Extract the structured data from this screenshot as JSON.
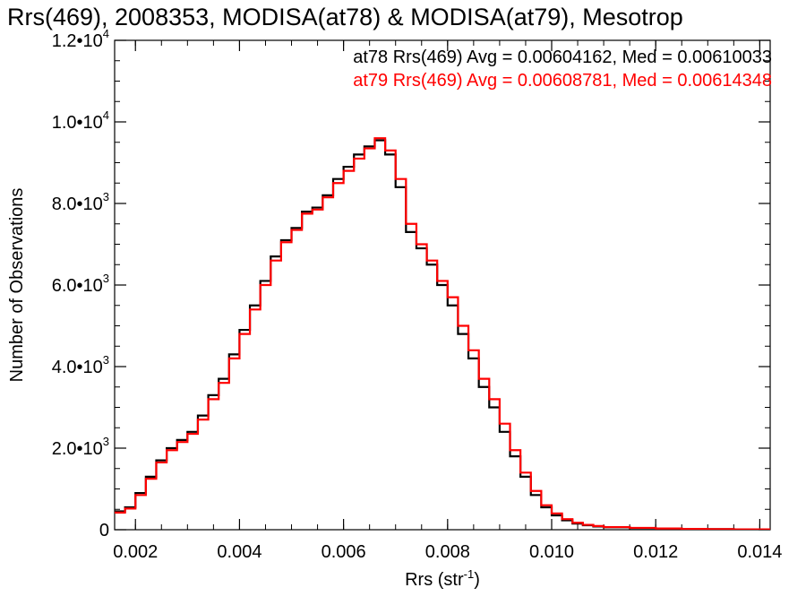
{
  "chart_data": {
    "type": "line",
    "title": "Rrs(469), 2008353, MODISA(at78) & MODISA(at79), Mesotrop",
    "xlabel": "Rrs (str",
    "xlabel_sup": "-1",
    "xlabel_close": ")",
    "ylabel": "Number of Observations",
    "xlim": [
      0.0016,
      0.0142
    ],
    "ylim": [
      0,
      12000
    ],
    "x_ticks": [
      {
        "value": 0.002,
        "label": "0.002"
      },
      {
        "value": 0.004,
        "label": "0.004"
      },
      {
        "value": 0.006,
        "label": "0.006"
      },
      {
        "value": 0.008,
        "label": "0.008"
      },
      {
        "value": 0.01,
        "label": "0.010"
      },
      {
        "value": 0.012,
        "label": "0.012"
      },
      {
        "value": 0.014,
        "label": "0.014"
      }
    ],
    "y_ticks": [
      {
        "value": 0,
        "mant": "0",
        "exp": ""
      },
      {
        "value": 2000,
        "mant": "2.0•10",
        "exp": "3"
      },
      {
        "value": 4000,
        "mant": "4.0•10",
        "exp": "3"
      },
      {
        "value": 6000,
        "mant": "6.0•10",
        "exp": "3"
      },
      {
        "value": 8000,
        "mant": "8.0•10",
        "exp": "3"
      },
      {
        "value": 10000,
        "mant": "1.0•10",
        "exp": "4"
      },
      {
        "value": 12000,
        "mant": "1.2•10",
        "exp": "4"
      }
    ],
    "x_minor_step": 0.0005,
    "y_minor_step": 500,
    "grid": false,
    "legend_position": "top-right",
    "annotations": [
      {
        "text": "at78 Rrs(469) Avg = 0.00604162, Med = 0.00610033",
        "color": "#000000"
      },
      {
        "text": "at79 Rrs(469) Avg = 0.00608781, Med = 0.00614348",
        "color": "#ff0000"
      }
    ],
    "series": [
      {
        "color": "#000000",
        "x": [
          0.0016,
          0.0018,
          0.002,
          0.0022,
          0.0024,
          0.0026,
          0.0028,
          0.003,
          0.0032,
          0.0034,
          0.0036,
          0.0038,
          0.004,
          0.0042,
          0.0044,
          0.0046,
          0.0048,
          0.005,
          0.0052,
          0.0054,
          0.0056,
          0.0058,
          0.006,
          0.0062,
          0.0064,
          0.0066,
          0.0068,
          0.007,
          0.0072,
          0.0074,
          0.0076,
          0.0078,
          0.008,
          0.0082,
          0.0084,
          0.0086,
          0.0088,
          0.009,
          0.0092,
          0.0094,
          0.0096,
          0.0098,
          0.01,
          0.0102,
          0.0104,
          0.0106,
          0.0108,
          0.011,
          0.0115,
          0.012,
          0.0125,
          0.013,
          0.0135,
          0.0142
        ],
        "y": [
          450,
          550,
          900,
          1300,
          1700,
          2000,
          2200,
          2400,
          2800,
          3300,
          3700,
          4300,
          4900,
          5500,
          6100,
          6700,
          7100,
          7400,
          7800,
          7900,
          8200,
          8600,
          8900,
          9200,
          9400,
          9550,
          9200,
          8400,
          7300,
          6900,
          6500,
          6000,
          5500,
          4800,
          4200,
          3500,
          3000,
          2400,
          1800,
          1300,
          850,
          550,
          350,
          230,
          150,
          110,
          80,
          60,
          40,
          30,
          20,
          15,
          10,
          5
        ]
      },
      {
        "color": "#ff0000",
        "x": [
          0.0016,
          0.0018,
          0.002,
          0.0022,
          0.0024,
          0.0026,
          0.0028,
          0.003,
          0.0032,
          0.0034,
          0.0036,
          0.0038,
          0.004,
          0.0042,
          0.0044,
          0.0046,
          0.0048,
          0.005,
          0.0052,
          0.0054,
          0.0056,
          0.0058,
          0.006,
          0.0062,
          0.0064,
          0.0066,
          0.0068,
          0.007,
          0.0072,
          0.0074,
          0.0076,
          0.0078,
          0.008,
          0.0082,
          0.0084,
          0.0086,
          0.0088,
          0.009,
          0.0092,
          0.0094,
          0.0096,
          0.0098,
          0.01,
          0.0102,
          0.0104,
          0.0106,
          0.0108,
          0.011,
          0.0115,
          0.012,
          0.0125,
          0.013,
          0.0135,
          0.0142
        ],
        "y": [
          420,
          520,
          850,
          1250,
          1650,
          1950,
          2150,
          2350,
          2700,
          3200,
          3600,
          4200,
          4800,
          5400,
          6000,
          6600,
          7050,
          7350,
          7750,
          7850,
          8150,
          8500,
          8800,
          9100,
          9350,
          9600,
          9300,
          8600,
          7500,
          7000,
          6600,
          6100,
          5700,
          5000,
          4400,
          3700,
          3200,
          2600,
          1950,
          1400,
          950,
          600,
          400,
          260,
          170,
          120,
          90,
          65,
          45,
          30,
          20,
          15,
          10,
          5
        ]
      }
    ]
  }
}
